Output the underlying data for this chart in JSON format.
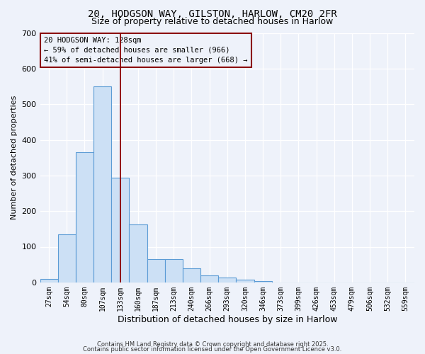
{
  "title1": "20, HODGSON WAY, GILSTON, HARLOW, CM20 2FR",
  "title2": "Size of property relative to detached houses in Harlow",
  "xlabel": "Distribution of detached houses by size in Harlow",
  "ylabel": "Number of detached properties",
  "bar_labels": [
    "27sqm",
    "54sqm",
    "80sqm",
    "107sqm",
    "133sqm",
    "160sqm",
    "187sqm",
    "213sqm",
    "240sqm",
    "266sqm",
    "293sqm",
    "320sqm",
    "346sqm",
    "373sqm",
    "399sqm",
    "426sqm",
    "453sqm",
    "479sqm",
    "506sqm",
    "532sqm",
    "559sqm"
  ],
  "bar_values": [
    10,
    135,
    365,
    550,
    293,
    163,
    65,
    65,
    40,
    20,
    13,
    8,
    3,
    0,
    0,
    0,
    0,
    0,
    0,
    0,
    0
  ],
  "bar_color": "#cce0f5",
  "bar_edgecolor": "#5b9bd5",
  "background_color": "#eef2fa",
  "grid_color": "#ffffff",
  "red_line_x": 4.5,
  "annotation_title": "20 HODGSON WAY: 128sqm",
  "annotation_line2": "← 59% of detached houses are smaller (966)",
  "annotation_line3": "41% of semi-detached houses are larger (668) →",
  "ylim": [
    0,
    700
  ],
  "yticks": [
    0,
    100,
    200,
    300,
    400,
    500,
    600,
    700
  ],
  "footer1": "Contains HM Land Registry data © Crown copyright and database right 2025.",
  "footer2": "Contains public sector information licensed under the Open Government Licence v3.0."
}
